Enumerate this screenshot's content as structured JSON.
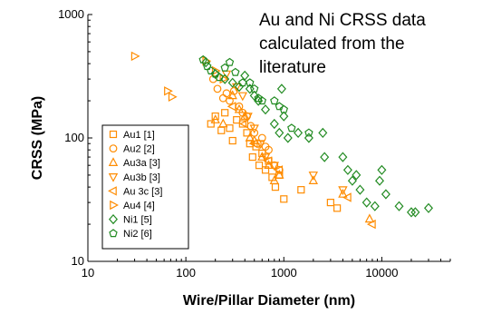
{
  "chart_data": {
    "type": "scatter",
    "title": "",
    "annotation": [
      "Au and Ni CRSS data",
      "calculated from the",
      "literature"
    ],
    "xlabel": "Wire/Pillar Diameter (nm)",
    "ylabel": "CRSS (MPa)",
    "xscale": "log",
    "yscale": "log",
    "xlim": [
      10,
      50000
    ],
    "ylim": [
      10,
      1000
    ],
    "xticks": [
      10,
      100,
      1000,
      10000
    ],
    "xtick_labels": [
      "10",
      "100",
      "1000",
      "10000"
    ],
    "yticks": [
      10,
      100,
      1000
    ],
    "ytick_labels": [
      "10",
      "100",
      "1000"
    ],
    "grid": false,
    "legend_position": "bottom-left",
    "series": [
      {
        "name": "Au1 [1]",
        "marker": "square",
        "color": "#FF8C00",
        "points": [
          [
            180,
            130
          ],
          [
            200,
            150
          ],
          [
            230,
            115
          ],
          [
            250,
            160
          ],
          [
            280,
            120
          ],
          [
            300,
            95
          ],
          [
            330,
            140
          ],
          [
            380,
            130
          ],
          [
            420,
            110
          ],
          [
            450,
            90
          ],
          [
            480,
            70
          ],
          [
            520,
            85
          ],
          [
            560,
            60
          ],
          [
            600,
            75
          ],
          [
            650,
            55
          ],
          [
            700,
            65
          ],
          [
            760,
            48
          ],
          [
            820,
            40
          ],
          [
            900,
            50
          ],
          [
            1000,
            32
          ],
          [
            1500,
            38
          ],
          [
            3000,
            30
          ],
          [
            3500,
            27
          ]
        ]
      },
      {
        "name": "Au2 [2]",
        "marker": "circle",
        "color": "#FF8C00",
        "points": [
          [
            190,
            300
          ],
          [
            210,
            250
          ],
          [
            240,
            210
          ],
          [
            260,
            230
          ],
          [
            280,
            200
          ],
          [
            310,
            240
          ],
          [
            350,
            180
          ],
          [
            380,
            160
          ],
          [
            420,
            150
          ],
          [
            460,
            125
          ],
          [
            500,
            110
          ],
          [
            540,
            90
          ],
          [
            600,
            100
          ],
          [
            650,
            85
          ],
          [
            700,
            80
          ],
          [
            800,
            60
          ],
          [
            900,
            55
          ]
        ]
      },
      {
        "name": "Au3a [3]",
        "marker": "triangle-up",
        "color": "#FF8C00",
        "points": [
          [
            200,
            140
          ],
          [
            240,
            130
          ],
          [
            300,
            220
          ],
          [
            350,
            170
          ],
          [
            400,
            150
          ],
          [
            450,
            100
          ],
          [
            500,
            95
          ],
          [
            600,
            70
          ],
          [
            700,
            60
          ],
          [
            800,
            45
          ],
          [
            900,
            50
          ],
          [
            2000,
            45
          ],
          [
            4000,
            35
          ],
          [
            7500,
            22
          ]
        ]
      },
      {
        "name": "Au3b [3]",
        "marker": "triangle-down",
        "color": "#FF8C00",
        "points": [
          [
            260,
            330
          ],
          [
            330,
            260
          ],
          [
            380,
            220
          ],
          [
            430,
            150
          ],
          [
            500,
            120
          ],
          [
            580,
            90
          ],
          [
            650,
            70
          ],
          [
            800,
            60
          ],
          [
            2000,
            50
          ],
          [
            4000,
            38
          ]
        ]
      },
      {
        "name": "Au 3c [3]",
        "marker": "triangle-left",
        "color": "#FF8C00",
        "points": [
          [
            300,
            180
          ],
          [
            400,
            130
          ],
          [
            500,
            90
          ],
          [
            700,
            65
          ],
          [
            900,
            55
          ],
          [
            4500,
            33
          ],
          [
            8000,
            20
          ]
        ]
      },
      {
        "name": "Au4 [4]",
        "marker": "triangle-right",
        "color": "#FF8C00",
        "points": [
          [
            30,
            460
          ],
          [
            65,
            240
          ],
          [
            72,
            215
          ],
          [
            160,
            420
          ],
          [
            200,
            350
          ],
          [
            240,
            300
          ]
        ]
      },
      {
        "name": "Ni1 [5]",
        "marker": "diamond",
        "color": "#228B22",
        "points": [
          [
            160,
            410
          ],
          [
            200,
            330
          ],
          [
            250,
            300
          ],
          [
            300,
            280
          ],
          [
            350,
            260
          ],
          [
            400,
            320
          ],
          [
            450,
            250
          ],
          [
            500,
            220
          ],
          [
            550,
            200
          ],
          [
            650,
            170
          ],
          [
            800,
            130
          ],
          [
            900,
            110
          ],
          [
            950,
            250
          ],
          [
            1000,
            150
          ],
          [
            1100,
            100
          ],
          [
            1400,
            110
          ],
          [
            1800,
            100
          ],
          [
            2500,
            110
          ],
          [
            2600,
            70
          ],
          [
            4000,
            70
          ],
          [
            4500,
            55
          ],
          [
            5000,
            45
          ],
          [
            5500,
            50
          ],
          [
            6000,
            38
          ],
          [
            7000,
            30
          ],
          [
            8500,
            28
          ],
          [
            9500,
            45
          ],
          [
            10000,
            55
          ],
          [
            11000,
            35
          ],
          [
            15000,
            28
          ],
          [
            20000,
            25
          ],
          [
            22000,
            25
          ],
          [
            30000,
            27
          ]
        ]
      },
      {
        "name": "Ni2 [6]",
        "marker": "pentagon",
        "color": "#228B22",
        "points": [
          [
            150,
            430
          ],
          [
            165,
            380
          ],
          [
            180,
            350
          ],
          [
            200,
            330
          ],
          [
            220,
            310
          ],
          [
            250,
            370
          ],
          [
            280,
            410
          ],
          [
            320,
            340
          ],
          [
            380,
            280
          ],
          [
            450,
            280
          ],
          [
            500,
            250
          ],
          [
            550,
            210
          ],
          [
            600,
            200
          ],
          [
            800,
            200
          ],
          [
            900,
            180
          ],
          [
            1000,
            170
          ],
          [
            1200,
            120
          ],
          [
            1800,
            110
          ]
        ]
      }
    ]
  }
}
